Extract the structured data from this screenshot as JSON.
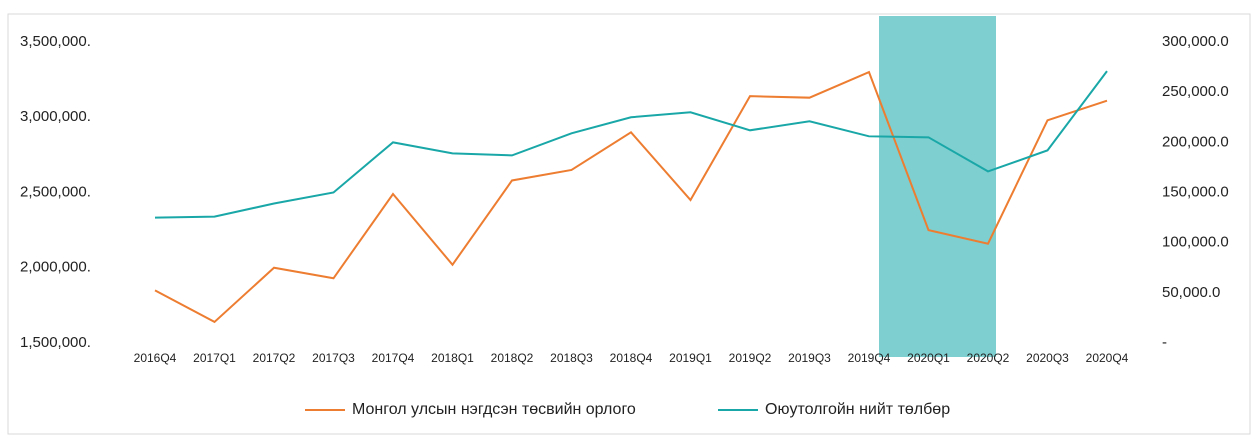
{
  "chart_data": {
    "type": "line",
    "categories": [
      "2016Q4",
      "2017Q1",
      "2017Q2",
      "2017Q3",
      "2017Q4",
      "2018Q1",
      "2018Q2",
      "2018Q3",
      "2018Q4",
      "2019Q1",
      "2019Q2",
      "2019Q3",
      "2019Q4",
      "2020Q1",
      "2020Q2",
      "2020Q3",
      "2020Q4"
    ],
    "series": [
      {
        "name": "Монгол улсын нэгдсэн төсвийн орлого",
        "color": "#ed7d31",
        "axis": "y",
        "values": [
          1850000,
          1640000,
          2000000,
          1930000,
          2490000,
          2020000,
          2580000,
          2650000,
          2900000,
          2450000,
          3140000,
          3130000,
          3300000,
          2250000,
          2160000,
          2980000,
          3110000
        ]
      },
      {
        "name": "Оюутолгойн нийт төлбөр",
        "color": "#1aa7a7",
        "axis": "y2",
        "values": [
          125000,
          126000,
          139000,
          150000,
          200000,
          189000,
          187000,
          209000,
          225000,
          230000,
          212000,
          221000,
          206000,
          205000,
          171000,
          192000,
          271000
        ]
      }
    ],
    "ylim": [
      1500000,
      3500000
    ],
    "yticks": [
      {
        "value": 1500000,
        "label": "1,500,000."
      },
      {
        "value": 2000000,
        "label": "2,000,000."
      },
      {
        "value": 2500000,
        "label": "2,500,000."
      },
      {
        "value": 3000000,
        "label": "3,000,000."
      },
      {
        "value": 3500000,
        "label": "3,500,000."
      }
    ],
    "y2lim": [
      0,
      300000
    ],
    "y2ticks": [
      {
        "value": 0,
        "label": "-"
      },
      {
        "value": 50000,
        "label": "50,000.0"
      },
      {
        "value": 100000,
        "label": "100,000.0"
      },
      {
        "value": 150000,
        "label": "150,000.0"
      },
      {
        "value": 200000,
        "label": "200,000.0"
      },
      {
        "value": 250000,
        "label": "250,000.0"
      },
      {
        "value": 300000,
        "label": "300,000.0"
      }
    ],
    "highlight": {
      "from": "2019Q4",
      "to": "2020Q2",
      "color": "#7ecfcf"
    },
    "legend": "bottom"
  }
}
